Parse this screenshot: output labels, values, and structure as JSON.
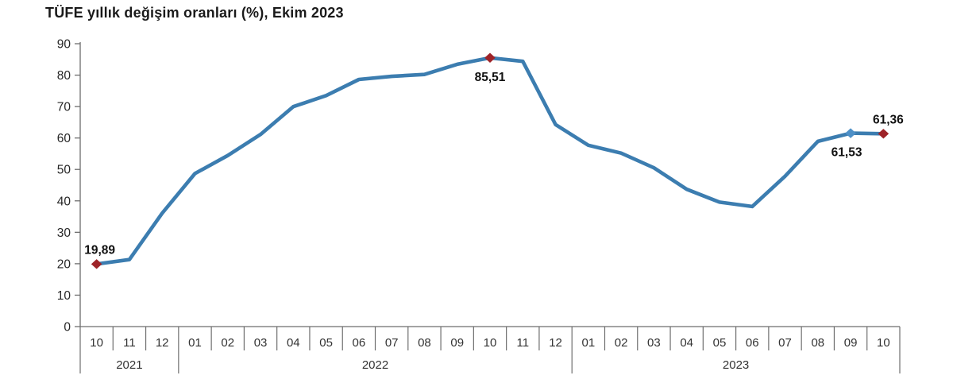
{
  "title": "TÜFE yıllık değişim oranları (%), Ekim 2023",
  "chart_data": {
    "type": "line",
    "title": "TÜFE yıllık değişim oranları (%), Ekim 2023",
    "x": [
      "10",
      "11",
      "12",
      "01",
      "02",
      "03",
      "04",
      "05",
      "06",
      "07",
      "08",
      "09",
      "10",
      "11",
      "12",
      "01",
      "02",
      "03",
      "04",
      "05",
      "06",
      "07",
      "08",
      "09",
      "10"
    ],
    "year_groups": [
      {
        "label": "2021",
        "months": 3
      },
      {
        "label": "2022",
        "months": 12
      },
      {
        "label": "2023",
        "months": 10
      }
    ],
    "series": [
      {
        "name": "TÜFE yıllık değişim oranı (%)",
        "color": "#3C7DB0",
        "values": [
          19.89,
          21.31,
          36.08,
          48.69,
          54.44,
          61.14,
          69.97,
          73.5,
          78.62,
          79.6,
          80.21,
          83.45,
          85.51,
          84.39,
          64.27,
          57.68,
          55.18,
          50.51,
          43.68,
          39.59,
          38.21,
          47.83,
          58.94,
          61.53,
          61.36
        ]
      }
    ],
    "ylim": [
      0,
      90
    ],
    "yticks": [
      0,
      10,
      20,
      30,
      40,
      50,
      60,
      70,
      80,
      90
    ],
    "xlabel": "",
    "ylabel": "",
    "grid": false,
    "legend": "none",
    "annotations": [
      {
        "index": 0,
        "label": "19,89",
        "placement": "above",
        "dx": 4,
        "marker": "diamond",
        "marker_color": "#9E2328"
      },
      {
        "index": 12,
        "label": "85,51",
        "placement": "below",
        "dx": 0,
        "marker": "diamond",
        "marker_color": "#9E2328"
      },
      {
        "index": 23,
        "label": "61,53",
        "placement": "below",
        "dx": -5,
        "marker": "diamond",
        "marker_color": "#4E90C7"
      },
      {
        "index": 24,
        "label": "61,36",
        "placement": "above",
        "dx": 6,
        "marker": "diamond",
        "marker_color": "#9E2328"
      }
    ]
  },
  "colors": {
    "background": "#ffffff",
    "title_text": "#1a1a1a",
    "axis_line": "#6e6e6e",
    "tick_text": "#262626",
    "month_text": "#333333",
    "year_text": "#333333",
    "data_label_text": "#111111"
  }
}
